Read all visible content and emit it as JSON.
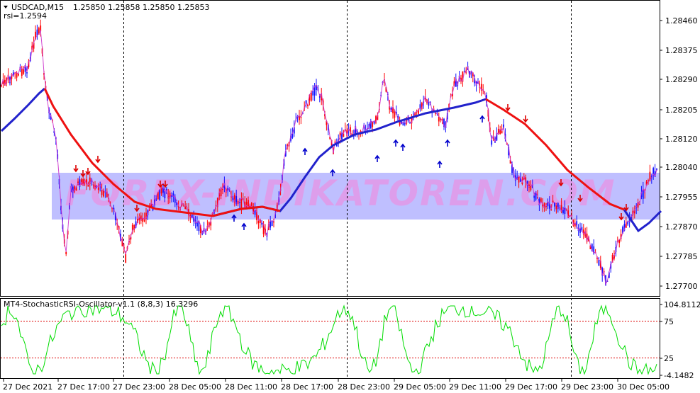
{
  "main_chart": {
    "symbol_label": "USDCAD,M15",
    "ohlc": "1.25850 1.25858 1.25850 1.25853",
    "indicator_label": "rsi=1.2594",
    "watermark": "FOREX-INDIKATOREN.COM",
    "price_axis": [
      "1.28460",
      "1.28375",
      "1.28290",
      "1.28205",
      "1.28120",
      "1.28040",
      "1.27955",
      "1.27870",
      "1.27785",
      "1.27700"
    ],
    "colors": {
      "candles": "#ff0000",
      "candles_alt": "#1010ff",
      "red_ma": "#ee1111",
      "blue_ma": "#2222cc",
      "arrow_down": "#dd0000",
      "arrow_up": "#0000cc",
      "watermark_band": "#aaaaff"
    }
  },
  "oscillator": {
    "label": "MT4-StochasticRSI-Oscillator-v1.1 (8,8,3) 16.3296",
    "axis": [
      "104.8112",
      "75",
      "25",
      "-4.1482"
    ],
    "line_color": "#00dd00",
    "level_color": "#dd0000"
  },
  "time_axis": [
    "27 Dec 2021",
    "27 Dec 17:00",
    "27 Dec 23:00",
    "28 Dec 05:00",
    "28 Dec 11:00",
    "28 Dec 17:00",
    "28 Dec 23:00",
    "29 Dec 05:00",
    "29 Dec 11:00",
    "29 Dec 17:00",
    "29 Dec 23:00",
    "30 Dec 05:00"
  ]
}
